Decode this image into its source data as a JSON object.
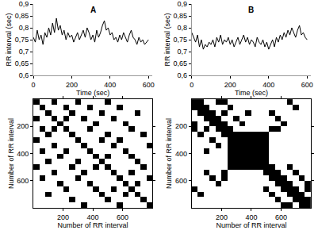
{
  "chart_data": [
    {
      "type": "line",
      "title": "A",
      "x_label": "Time (sec)",
      "y_label": "RR interval (sec)",
      "color": "#000000",
      "grid": false,
      "x": [
        0,
        10,
        20,
        30,
        40,
        50,
        60,
        70,
        80,
        90,
        100,
        110,
        120,
        130,
        140,
        150,
        160,
        170,
        180,
        190,
        200,
        210,
        220,
        230,
        240,
        250,
        260,
        270,
        280,
        290,
        300,
        310,
        320,
        330,
        340,
        350,
        360,
        370,
        380,
        390,
        400,
        410,
        420,
        430,
        440,
        450,
        460,
        470,
        480,
        490,
        500,
        510,
        520,
        530,
        540,
        550,
        560,
        570,
        580,
        590,
        600
      ],
      "values": [
        0.76,
        0.74,
        0.79,
        0.75,
        0.77,
        0.73,
        0.78,
        0.76,
        0.8,
        0.77,
        0.82,
        0.78,
        0.84,
        0.79,
        0.81,
        0.77,
        0.79,
        0.75,
        0.78,
        0.76,
        0.77,
        0.74,
        0.76,
        0.78,
        0.75,
        0.77,
        0.79,
        0.76,
        0.8,
        0.78,
        0.75,
        0.77,
        0.74,
        0.79,
        0.76,
        0.78,
        0.81,
        0.83,
        0.79,
        0.8,
        0.77,
        0.78,
        0.75,
        0.76,
        0.74,
        0.77,
        0.75,
        0.78,
        0.76,
        0.74,
        0.77,
        0.79,
        0.76,
        0.75,
        0.73,
        0.76,
        0.74,
        0.75,
        0.73,
        0.74,
        0.75
      ],
      "xlim": [
        0,
        620
      ],
      "xticks": [
        0,
        200,
        400,
        600
      ],
      "ylim": [
        0.6,
        0.9
      ],
      "yticks": [
        {
          "value": 0.6,
          "label": "0,6"
        },
        {
          "value": 0.65,
          "label": "0,65"
        },
        {
          "value": 0.7,
          "label": "0,7"
        },
        {
          "value": 0.75,
          "label": "0,75"
        },
        {
          "value": 0.8,
          "label": "0,8"
        },
        {
          "value": 0.85,
          "label": "0,85"
        },
        {
          "value": 0.9,
          "label": "0,9"
        }
      ]
    },
    {
      "type": "line",
      "title": "B",
      "x_label": "Time (sec)",
      "y_label": "RR interval (sec)",
      "color": "#000000",
      "grid": false,
      "x": [
        0,
        10,
        20,
        30,
        40,
        50,
        60,
        70,
        80,
        90,
        100,
        110,
        120,
        130,
        140,
        150,
        160,
        170,
        180,
        190,
        200,
        210,
        220,
        230,
        240,
        250,
        260,
        270,
        280,
        290,
        300,
        310,
        320,
        330,
        340,
        350,
        360,
        370,
        380,
        390,
        400,
        410,
        420,
        430,
        440,
        450,
        460,
        470,
        480,
        490,
        500,
        510,
        520,
        530,
        540,
        550,
        560,
        570,
        580,
        590,
        600
      ],
      "values": [
        0.78,
        0.76,
        0.74,
        0.77,
        0.72,
        0.75,
        0.71,
        0.73,
        0.72,
        0.74,
        0.73,
        0.75,
        0.72,
        0.76,
        0.74,
        0.77,
        0.73,
        0.75,
        0.74,
        0.76,
        0.73,
        0.75,
        0.72,
        0.74,
        0.76,
        0.73,
        0.75,
        0.77,
        0.74,
        0.76,
        0.73,
        0.75,
        0.74,
        0.72,
        0.76,
        0.74,
        0.73,
        0.75,
        0.72,
        0.74,
        0.71,
        0.73,
        0.75,
        0.72,
        0.76,
        0.74,
        0.77,
        0.75,
        0.78,
        0.76,
        0.79,
        0.77,
        0.8,
        0.78,
        0.76,
        0.79,
        0.81,
        0.77,
        0.78,
        0.76,
        0.75
      ],
      "xlim": [
        0,
        620
      ],
      "xticks": [
        0,
        200,
        400,
        600
      ],
      "ylim": [
        0.6,
        0.9
      ],
      "yticks": [
        {
          "value": 0.6,
          "label": "0,6"
        },
        {
          "value": 0.65,
          "label": "0,65"
        },
        {
          "value": 0.7,
          "label": "0,7"
        },
        {
          "value": 0.75,
          "label": "0,75"
        },
        {
          "value": 0.8,
          "label": "0,8"
        },
        {
          "value": 0.85,
          "label": "0,85"
        },
        {
          "value": 0.9,
          "label": "0,9"
        }
      ]
    },
    {
      "type": "heatmap",
      "x_label": "Number of RR interval",
      "y_label": "Number of RR interval",
      "color": "#000000",
      "grid": false,
      "x": [
        20,
        60,
        100,
        140,
        180,
        220,
        260,
        300,
        340,
        380,
        420,
        460,
        500,
        540,
        580,
        620,
        660,
        700,
        740,
        780
      ],
      "y": [
        20,
        60,
        100,
        140,
        180,
        220,
        260,
        300,
        340,
        380,
        420,
        460,
        500,
        540,
        580,
        620,
        660,
        700,
        740,
        780
      ],
      "xlim": [
        0,
        800
      ],
      "xticks": [
        200,
        400,
        600
      ],
      "ylim": [
        800,
        0
      ],
      "yticks": [
        200,
        400,
        600
      ],
      "cells": [
        [
          1,
          0,
          0,
          1,
          0,
          0,
          0,
          1,
          0,
          0,
          0,
          0,
          1,
          0,
          0,
          0,
          0,
          0,
          0,
          0
        ],
        [
          0,
          1,
          0,
          0,
          0,
          1,
          0,
          0,
          0,
          1,
          0,
          0,
          0,
          0,
          1,
          0,
          0,
          0,
          0,
          0
        ],
        [
          0,
          0,
          1,
          0,
          0,
          0,
          1,
          0,
          0,
          0,
          0,
          1,
          0,
          0,
          0,
          0,
          0,
          1,
          0,
          0
        ],
        [
          1,
          0,
          0,
          1,
          0,
          1,
          0,
          0,
          1,
          0,
          0,
          0,
          0,
          1,
          0,
          0,
          0,
          0,
          0,
          0
        ],
        [
          0,
          0,
          0,
          0,
          1,
          0,
          0,
          0,
          0,
          0,
          1,
          0,
          0,
          0,
          0,
          1,
          0,
          0,
          0,
          0
        ],
        [
          0,
          1,
          0,
          1,
          0,
          1,
          0,
          0,
          0,
          1,
          0,
          0,
          0,
          0,
          0,
          0,
          1,
          0,
          0,
          0
        ],
        [
          0,
          0,
          1,
          0,
          0,
          0,
          1,
          0,
          0,
          0,
          0,
          0,
          1,
          0,
          0,
          0,
          0,
          0,
          1,
          0
        ],
        [
          1,
          0,
          0,
          0,
          0,
          0,
          0,
          1,
          0,
          0,
          0,
          1,
          0,
          0,
          1,
          0,
          0,
          0,
          0,
          0
        ],
        [
          0,
          0,
          0,
          1,
          0,
          0,
          0,
          0,
          1,
          0,
          0,
          0,
          0,
          1,
          0,
          0,
          0,
          0,
          0,
          1
        ],
        [
          0,
          1,
          0,
          0,
          0,
          1,
          0,
          0,
          0,
          1,
          0,
          0,
          0,
          0,
          0,
          1,
          0,
          0,
          0,
          0
        ],
        [
          0,
          0,
          0,
          0,
          1,
          0,
          0,
          0,
          0,
          0,
          1,
          0,
          1,
          0,
          0,
          0,
          1,
          0,
          0,
          0
        ],
        [
          0,
          0,
          1,
          0,
          0,
          0,
          0,
          1,
          0,
          0,
          0,
          1,
          0,
          0,
          0,
          0,
          0,
          1,
          0,
          0
        ],
        [
          1,
          0,
          0,
          0,
          0,
          0,
          1,
          0,
          0,
          0,
          1,
          0,
          1,
          0,
          0,
          0,
          0,
          0,
          1,
          0
        ],
        [
          0,
          0,
          0,
          1,
          0,
          0,
          0,
          0,
          1,
          0,
          0,
          0,
          0,
          1,
          0,
          0,
          1,
          0,
          0,
          0
        ],
        [
          0,
          1,
          0,
          0,
          0,
          0,
          0,
          1,
          0,
          0,
          0,
          0,
          0,
          0,
          1,
          0,
          0,
          0,
          0,
          1
        ],
        [
          0,
          0,
          0,
          0,
          1,
          0,
          0,
          0,
          0,
          1,
          0,
          0,
          0,
          0,
          0,
          1,
          0,
          1,
          0,
          0
        ],
        [
          0,
          0,
          0,
          0,
          0,
          1,
          0,
          0,
          0,
          0,
          1,
          0,
          0,
          1,
          0,
          0,
          1,
          0,
          0,
          0
        ],
        [
          0,
          0,
          1,
          0,
          0,
          0,
          0,
          0,
          0,
          0,
          0,
          1,
          0,
          0,
          0,
          1,
          0,
          1,
          0,
          0
        ],
        [
          0,
          0,
          0,
          0,
          0,
          0,
          1,
          0,
          0,
          0,
          0,
          0,
          1,
          0,
          0,
          0,
          0,
          0,
          1,
          0
        ],
        [
          0,
          0,
          0,
          0,
          0,
          0,
          0,
          0,
          1,
          0,
          0,
          0,
          0,
          0,
          1,
          0,
          0,
          0,
          0,
          1
        ]
      ]
    },
    {
      "type": "heatmap",
      "x_label": "Number of RR interval",
      "y_label": "Number of RR interval",
      "color": "#000000",
      "grid": false,
      "x": [
        20,
        60,
        100,
        140,
        180,
        220,
        260,
        300,
        340,
        380,
        420,
        460,
        500,
        540,
        580,
        620,
        660,
        700,
        740,
        780
      ],
      "y": [
        20,
        60,
        100,
        140,
        180,
        220,
        260,
        300,
        340,
        380,
        420,
        460,
        500,
        540,
        580,
        620,
        660,
        700,
        740,
        780
      ],
      "xlim": [
        0,
        800
      ],
      "xticks": [
        200,
        400,
        600
      ],
      "ylim": [
        800,
        0
      ],
      "yticks": [
        200,
        400,
        600
      ],
      "cells": [
        [
          1,
          1,
          0,
          0,
          1,
          1,
          0,
          0,
          0,
          0,
          0,
          0,
          0,
          0,
          0,
          0,
          1,
          0,
          0,
          0
        ],
        [
          1,
          1,
          1,
          0,
          0,
          0,
          1,
          0,
          0,
          0,
          0,
          0,
          0,
          0,
          0,
          0,
          0,
          1,
          0,
          0
        ],
        [
          0,
          1,
          1,
          1,
          0,
          1,
          0,
          0,
          0,
          1,
          0,
          0,
          0,
          1,
          0,
          0,
          0,
          0,
          0,
          0
        ],
        [
          0,
          0,
          1,
          1,
          1,
          0,
          0,
          1,
          0,
          0,
          0,
          0,
          0,
          0,
          1,
          0,
          0,
          0,
          0,
          0
        ],
        [
          1,
          0,
          0,
          1,
          1,
          1,
          0,
          0,
          1,
          0,
          0,
          0,
          0,
          0,
          0,
          1,
          0,
          0,
          0,
          0
        ],
        [
          1,
          0,
          1,
          0,
          1,
          1,
          1,
          0,
          0,
          0,
          0,
          0,
          0,
          1,
          1,
          0,
          0,
          0,
          0,
          0
        ],
        [
          0,
          1,
          0,
          0,
          0,
          1,
          1,
          1,
          1,
          1,
          1,
          1,
          1,
          0,
          0,
          0,
          0,
          0,
          0,
          0
        ],
        [
          0,
          0,
          0,
          1,
          0,
          0,
          1,
          1,
          1,
          1,
          1,
          1,
          1,
          0,
          0,
          0,
          0,
          0,
          0,
          0
        ],
        [
          0,
          0,
          0,
          0,
          1,
          0,
          1,
          1,
          1,
          1,
          1,
          1,
          1,
          0,
          0,
          0,
          0,
          0,
          0,
          0
        ],
        [
          0,
          0,
          1,
          0,
          0,
          0,
          1,
          1,
          1,
          1,
          1,
          1,
          1,
          0,
          0,
          0,
          0,
          0,
          0,
          0
        ],
        [
          0,
          0,
          0,
          0,
          0,
          0,
          1,
          1,
          1,
          1,
          1,
          1,
          1,
          0,
          0,
          0,
          0,
          0,
          0,
          0
        ],
        [
          0,
          0,
          0,
          0,
          0,
          0,
          1,
          1,
          1,
          1,
          1,
          1,
          1,
          0,
          0,
          0,
          0,
          0,
          0,
          0
        ],
        [
          0,
          0,
          0,
          0,
          0,
          0,
          1,
          1,
          1,
          1,
          1,
          1,
          1,
          1,
          0,
          0,
          1,
          0,
          0,
          0
        ],
        [
          0,
          0,
          1,
          0,
          0,
          1,
          0,
          0,
          0,
          0,
          0,
          0,
          1,
          1,
          1,
          0,
          0,
          1,
          0,
          0
        ],
        [
          0,
          0,
          0,
          1,
          0,
          1,
          0,
          0,
          0,
          0,
          0,
          0,
          0,
          1,
          1,
          1,
          0,
          0,
          1,
          0
        ],
        [
          0,
          0,
          0,
          0,
          1,
          0,
          0,
          0,
          0,
          0,
          0,
          0,
          0,
          0,
          1,
          1,
          1,
          0,
          0,
          1
        ],
        [
          1,
          0,
          0,
          0,
          0,
          0,
          0,
          0,
          0,
          0,
          0,
          0,
          1,
          0,
          0,
          1,
          1,
          1,
          0,
          1
        ],
        [
          0,
          1,
          0,
          0,
          0,
          0,
          0,
          0,
          0,
          0,
          0,
          0,
          0,
          1,
          0,
          0,
          1,
          1,
          1,
          0
        ],
        [
          0,
          0,
          0,
          0,
          0,
          0,
          0,
          0,
          0,
          0,
          0,
          0,
          0,
          0,
          1,
          0,
          0,
          1,
          1,
          1
        ],
        [
          0,
          0,
          0,
          0,
          0,
          0,
          0,
          0,
          0,
          0,
          0,
          0,
          0,
          0,
          0,
          1,
          1,
          0,
          1,
          1
        ]
      ]
    }
  ]
}
